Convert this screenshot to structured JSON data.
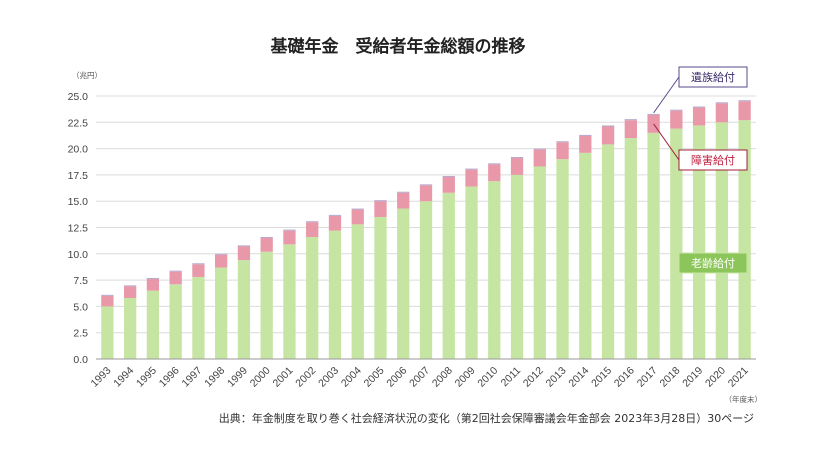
{
  "chart_data": {
    "type": "bar",
    "stacked": true,
    "title": "基礎年金　受給者年金総額の推移",
    "ylabel": "（兆円）",
    "xlabel": "（年度末）",
    "ylim": [
      0,
      25
    ],
    "yticks": [
      "0.0",
      "2.5",
      "5.0",
      "7.5",
      "10.0",
      "12.5",
      "15.0",
      "17.5",
      "20.0",
      "22.5",
      "25.0"
    ],
    "grid": true,
    "categories": [
      "1993",
      "1994",
      "1995",
      "1996",
      "1997",
      "1998",
      "1999",
      "2000",
      "2001",
      "2002",
      "2003",
      "2004",
      "2005",
      "2006",
      "2007",
      "2008",
      "2009",
      "2010",
      "2011",
      "2012",
      "2013",
      "2014",
      "2015",
      "2016",
      "2017",
      "2018",
      "2019",
      "2020",
      "2021"
    ],
    "series": [
      {
        "name": "老齢給付",
        "color": "#c6e5a3",
        "values": [
          5.0,
          5.8,
          6.5,
          7.1,
          7.8,
          8.7,
          9.4,
          10.2,
          10.9,
          11.6,
          12.2,
          12.8,
          13.5,
          14.3,
          15.0,
          15.8,
          16.4,
          16.9,
          17.5,
          18.3,
          19.0,
          19.6,
          20.4,
          21.0,
          21.5,
          21.9,
          22.2,
          22.5,
          22.7
        ]
      },
      {
        "name": "障害給付",
        "color": "#e898a8",
        "values": [
          1.0,
          1.1,
          1.1,
          1.2,
          1.2,
          1.2,
          1.3,
          1.3,
          1.3,
          1.4,
          1.4,
          1.4,
          1.5,
          1.5,
          1.5,
          1.5,
          1.6,
          1.6,
          1.6,
          1.6,
          1.6,
          1.6,
          1.7,
          1.7,
          1.7,
          1.7,
          1.7,
          1.8,
          1.8
        ]
      },
      {
        "name": "遺族給付",
        "color": "#b8a8cc",
        "values": [
          0.1,
          0.1,
          0.1,
          0.1,
          0.1,
          0.1,
          0.1,
          0.1,
          0.1,
          0.1,
          0.1,
          0.1,
          0.1,
          0.1,
          0.1,
          0.1,
          0.1,
          0.1,
          0.1,
          0.1,
          0.1,
          0.1,
          0.1,
          0.1,
          0.1,
          0.1,
          0.1,
          0.1,
          0.1
        ]
      }
    ],
    "callouts": [
      {
        "label": "遺族給付",
        "border": "#5a4a8a",
        "text_color": "#3a2a6a"
      },
      {
        "label": "障害給付",
        "border": "#a0203a",
        "text_color": "#c02040"
      },
      {
        "label": "老齢給付",
        "border": "#c6e5a3",
        "text_color": "#ffffff",
        "fill": "#8cc65a"
      }
    ]
  },
  "source": "出典：年金制度を取り巻く社会経済状況の変化（第2回社会保障審議会年金部会 2023年3月28日）30ページ"
}
